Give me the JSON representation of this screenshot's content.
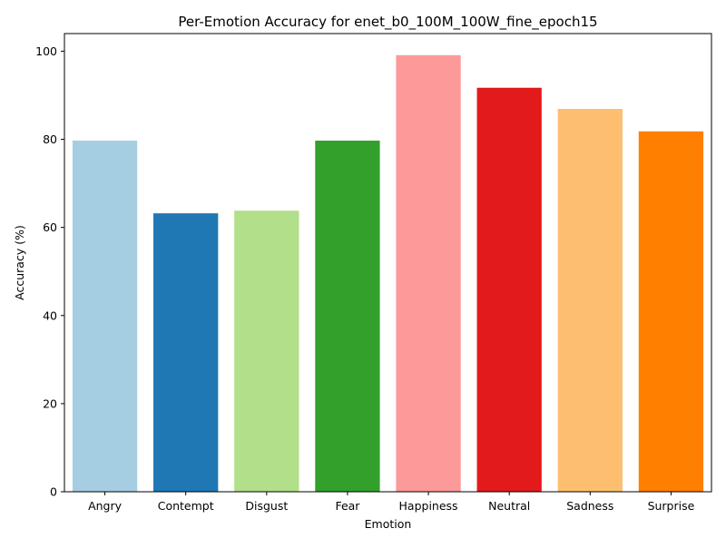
{
  "chart_data": {
    "type": "bar",
    "title": "Per-Emotion Accuracy for enet_b0_100M_100W_fine_epoch15",
    "xlabel": "Emotion",
    "ylabel": "Accuracy (%)",
    "categories": [
      "Angry",
      "Contempt",
      "Disgust",
      "Fear",
      "Happiness",
      "Neutral",
      "Sadness",
      "Surprise"
    ],
    "values": [
      79.7,
      63.2,
      63.8,
      79.7,
      99.1,
      91.7,
      86.9,
      81.8
    ],
    "colors": [
      "#a6cee3",
      "#1f78b4",
      "#b2df8a",
      "#33a02c",
      "#fb9a99",
      "#e31a1c",
      "#fdbf6f",
      "#ff7f00"
    ],
    "ylim": [
      0,
      104
    ],
    "yticks": [
      0,
      20,
      40,
      60,
      80,
      100
    ],
    "grid": false,
    "legend": "none"
  }
}
